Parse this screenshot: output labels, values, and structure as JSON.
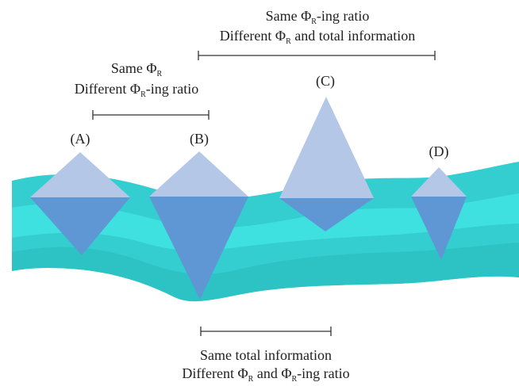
{
  "annotations": [
    {
      "lines": [
        [
          "Same Φ",
          "R",
          "-ing ratio"
        ],
        [
          "Different Φ",
          "R",
          " and total information"
        ]
      ]
    },
    {
      "lines": [
        [
          "Same Φ",
          "R"
        ],
        [
          "Different Φ",
          "R",
          "-ing ratio"
        ]
      ]
    },
    {
      "lines": [
        [
          "Same total information"
        ],
        [
          "Different Φ",
          "R",
          " and Φ",
          "R",
          "-ing ratio"
        ]
      ]
    }
  ],
  "nodes": [
    {
      "label": "(A)"
    },
    {
      "label": "(B)"
    },
    {
      "label": "(C)"
    },
    {
      "label": "(D)"
    }
  ]
}
